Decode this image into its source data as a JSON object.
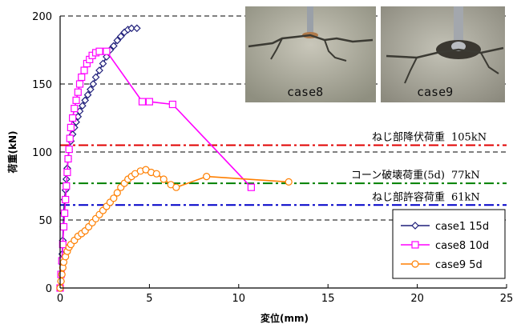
{
  "chart_data": {
    "type": "line",
    "xlabel": "変位(mm)",
    "ylabel": "荷重(kN)",
    "xlim": [
      0,
      25
    ],
    "ylim": [
      0,
      200
    ],
    "xticks": [
      0,
      5,
      10,
      15,
      20,
      25
    ],
    "yticks": [
      0,
      50,
      100,
      150,
      200
    ],
    "x_tick_labels": [
      "0",
      "5",
      "10",
      "15",
      "20",
      "25"
    ],
    "y_tick_labels": [
      "0",
      "50",
      "100",
      "150",
      "200"
    ],
    "grid": "dashed horizontal lines at y ticks",
    "legend_position": "bottom-right",
    "series": [
      {
        "name": "case1 15d",
        "color": "#1f1f7a",
        "marker": "diamond",
        "points": [
          [
            0,
            0
          ],
          [
            0.05,
            5
          ],
          [
            0.08,
            10
          ],
          [
            0.1,
            18
          ],
          [
            0.12,
            25
          ],
          [
            0.15,
            35
          ],
          [
            0.18,
            45
          ],
          [
            0.2,
            55
          ],
          [
            0.25,
            65
          ],
          [
            0.3,
            72
          ],
          [
            0.35,
            80
          ],
          [
            0.4,
            88
          ],
          [
            0.45,
            95
          ],
          [
            0.5,
            102
          ],
          [
            0.6,
            108
          ],
          [
            0.7,
            113
          ],
          [
            0.8,
            118
          ],
          [
            0.9,
            122
          ],
          [
            1.0,
            126
          ],
          [
            1.1,
            130
          ],
          [
            1.25,
            134
          ],
          [
            1.4,
            138
          ],
          [
            1.55,
            142
          ],
          [
            1.7,
            146
          ],
          [
            1.85,
            150
          ],
          [
            2.0,
            155
          ],
          [
            2.2,
            160
          ],
          [
            2.4,
            165
          ],
          [
            2.6,
            170
          ],
          [
            2.8,
            175
          ],
          [
            3.0,
            178
          ],
          [
            3.2,
            182
          ],
          [
            3.4,
            185
          ],
          [
            3.6,
            188
          ],
          [
            3.8,
            190
          ],
          [
            4.0,
            191
          ],
          [
            4.3,
            191
          ]
        ]
      },
      {
        "name": "case8 10d",
        "color": "#ff00ff",
        "marker": "square",
        "points": [
          [
            0,
            0
          ],
          [
            0.05,
            10
          ],
          [
            0.1,
            20
          ],
          [
            0.15,
            32
          ],
          [
            0.2,
            45
          ],
          [
            0.25,
            55
          ],
          [
            0.3,
            65
          ],
          [
            0.35,
            75
          ],
          [
            0.4,
            85
          ],
          [
            0.45,
            95
          ],
          [
            0.5,
            102
          ],
          [
            0.55,
            110
          ],
          [
            0.6,
            118
          ],
          [
            0.7,
            125
          ],
          [
            0.8,
            132
          ],
          [
            0.9,
            138
          ],
          [
            1.0,
            144
          ],
          [
            1.1,
            150
          ],
          [
            1.2,
            155
          ],
          [
            1.35,
            160
          ],
          [
            1.5,
            165
          ],
          [
            1.65,
            168
          ],
          [
            1.8,
            171
          ],
          [
            2.0,
            173
          ],
          [
            2.2,
            174
          ],
          [
            2.6,
            174
          ],
          [
            4.6,
            137
          ],
          [
            5.0,
            137
          ],
          [
            6.3,
            135
          ],
          [
            10.7,
            74
          ]
        ]
      },
      {
        "name": "case9 5d",
        "color": "#ff7f00",
        "marker": "circle",
        "points": [
          [
            0,
            0
          ],
          [
            0.05,
            5
          ],
          [
            0.1,
            10
          ],
          [
            0.15,
            15
          ],
          [
            0.2,
            19
          ],
          [
            0.3,
            23
          ],
          [
            0.4,
            27
          ],
          [
            0.5,
            30
          ],
          [
            0.6,
            32
          ],
          [
            0.8,
            35
          ],
          [
            1.0,
            38
          ],
          [
            1.2,
            40
          ],
          [
            1.4,
            42
          ],
          [
            1.6,
            45
          ],
          [
            1.8,
            48
          ],
          [
            2.0,
            51
          ],
          [
            2.2,
            54
          ],
          [
            2.4,
            57
          ],
          [
            2.6,
            60
          ],
          [
            2.8,
            63
          ],
          [
            3.0,
            66
          ],
          [
            3.2,
            70
          ],
          [
            3.4,
            74
          ],
          [
            3.6,
            77
          ],
          [
            3.8,
            80
          ],
          [
            4.0,
            82
          ],
          [
            4.2,
            84
          ],
          [
            4.5,
            86
          ],
          [
            4.8,
            87
          ],
          [
            5.1,
            85
          ],
          [
            5.4,
            84
          ],
          [
            5.8,
            80
          ],
          [
            6.2,
            76
          ],
          [
            6.5,
            74
          ],
          [
            8.2,
            82
          ],
          [
            12.8,
            78
          ]
        ]
      }
    ],
    "reference_lines": [
      {
        "label": "ねじ部降伏荷重",
        "value_label": "105kN",
        "y": 105,
        "color": "#e00000"
      },
      {
        "label": "コーン破壊荷重(5d)",
        "value_label": "77kN",
        "y": 77,
        "color": "#008000"
      },
      {
        "label": "ねじ部許容荷重",
        "value_label": "61kN",
        "y": 61,
        "color": "#0000c8"
      }
    ]
  },
  "photos": [
    {
      "caption": "case8",
      "icon": "cracked-concrete-photo"
    },
    {
      "caption": "case9",
      "icon": "cracked-concrete-photo"
    }
  ]
}
